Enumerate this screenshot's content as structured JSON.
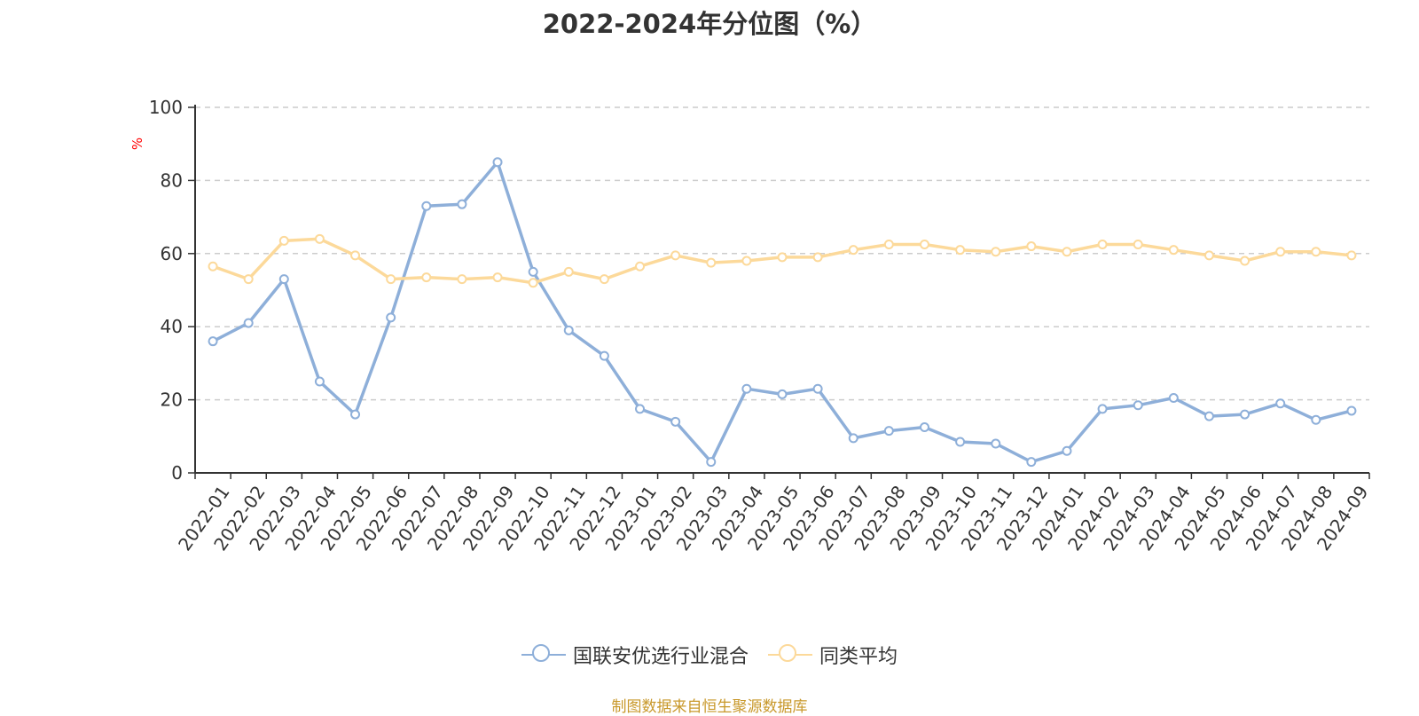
{
  "title": "2022-2024年分位图（%）",
  "source_note": "制图数据来自恒生聚源数据库",
  "chart_data": {
    "type": "line",
    "title": "2022-2024年分位图（%）",
    "ylabel": "%",
    "xlabel": "",
    "ylim": [
      0,
      100
    ],
    "yticks": [
      0,
      20,
      40,
      60,
      80,
      100
    ],
    "grid": true,
    "legend_position": "bottom-center",
    "categories": [
      "2022-01",
      "2022-02",
      "2022-03",
      "2022-04",
      "2022-05",
      "2022-06",
      "2022-07",
      "2022-08",
      "2022-09",
      "2022-10",
      "2022-11",
      "2022-12",
      "2023-01",
      "2023-02",
      "2023-03",
      "2023-04",
      "2023-05",
      "2023-06",
      "2023-07",
      "2023-08",
      "2023-09",
      "2023-10",
      "2023-11",
      "2023-12",
      "2024-01",
      "2024-02",
      "2024-03",
      "2024-04",
      "2024-05",
      "2024-06",
      "2024-07",
      "2024-08",
      "2024-09"
    ],
    "series": [
      {
        "name": "国联安优选行业混合",
        "color": "#8eafd9",
        "values": [
          36,
          41,
          53,
          25,
          16,
          42.5,
          73,
          73.5,
          85,
          55,
          39,
          32,
          17.5,
          14,
          3,
          23,
          21.5,
          23,
          9.5,
          11.5,
          12.5,
          8.5,
          8,
          3,
          6,
          17.5,
          18.5,
          20.5,
          15.5,
          16,
          19,
          14.5,
          17
        ]
      },
      {
        "name": "同类平均",
        "color": "#fcd99a",
        "values": [
          56.5,
          53,
          63.5,
          64,
          59.5,
          53,
          53.5,
          53,
          53.5,
          52,
          55,
          53,
          56.5,
          59.5,
          57.5,
          58,
          59,
          59,
          61,
          62.5,
          62.5,
          61,
          60.5,
          62,
          60.5,
          62.5,
          62.5,
          61,
          59.5,
          58,
          60.5,
          60.5,
          59.5
        ]
      }
    ]
  }
}
